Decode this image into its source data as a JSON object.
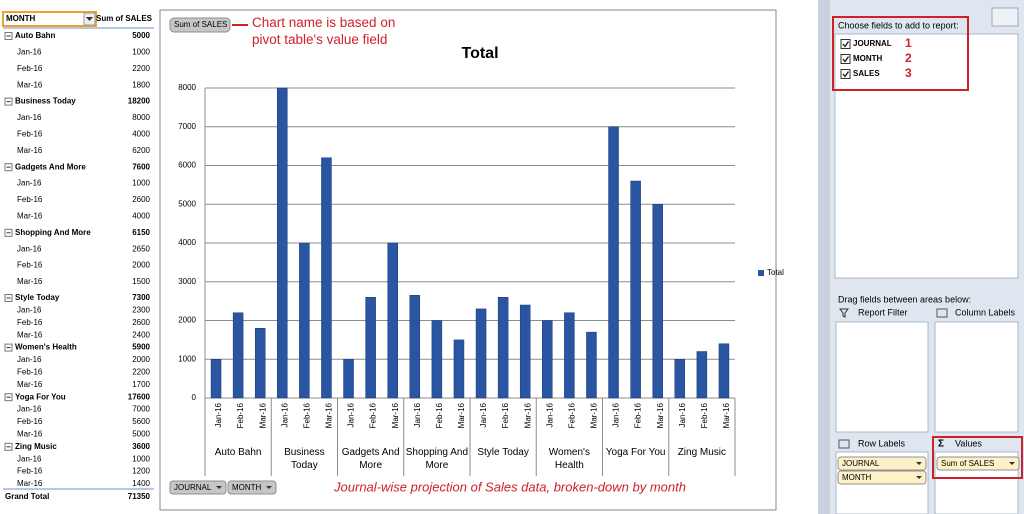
{
  "pivot_table": {
    "headers": [
      "MONTH",
      "Sum of SALES"
    ],
    "groups": [
      {
        "name": "Auto Bahn",
        "total": 5000,
        "rows": [
          [
            "Jan-16",
            1000
          ],
          [
            "Feb-16",
            2200
          ],
          [
            "Mar-16",
            1800
          ]
        ]
      },
      {
        "name": "Business Today",
        "total": 18200,
        "rows": [
          [
            "Jan-16",
            8000
          ],
          [
            "Feb-16",
            4000
          ],
          [
            "Mar-16",
            6200
          ]
        ]
      },
      {
        "name": "Gadgets And More",
        "total": 7600,
        "rows": [
          [
            "Jan-16",
            1000
          ],
          [
            "Feb-16",
            2600
          ],
          [
            "Mar-16",
            4000
          ]
        ]
      },
      {
        "name": "Shopping And More",
        "total": 6150,
        "rows": [
          [
            "Jan-16",
            2650
          ],
          [
            "Feb-16",
            2000
          ],
          [
            "Mar-16",
            1500
          ]
        ]
      },
      {
        "name": "Style Today",
        "total": 7300,
        "rows": [
          [
            "Jan-16",
            2300
          ],
          [
            "Feb-16",
            2600
          ],
          [
            "Mar-16",
            2400
          ]
        ]
      },
      {
        "name": "Women's Health",
        "total": 5900,
        "rows": [
          [
            "Jan-16",
            2000
          ],
          [
            "Feb-16",
            2200
          ],
          [
            "Mar-16",
            1700
          ]
        ]
      },
      {
        "name": "Yoga For You",
        "total": 17600,
        "rows": [
          [
            "Jan-16",
            7000
          ],
          [
            "Feb-16",
            5600
          ],
          [
            "Mar-16",
            5000
          ]
        ]
      },
      {
        "name": "Zing Music",
        "total": 3600,
        "rows": [
          [
            "Jan-16",
            1000
          ],
          [
            "Feb-16",
            1200
          ],
          [
            "Mar-16",
            1400
          ]
        ]
      }
    ],
    "grand_total": {
      "label": "Grand Total",
      "value": 71350
    }
  },
  "chart_data": {
    "type": "bar",
    "title": "Total",
    "value_field_button": "Sum of SALES",
    "axis_field_buttons": [
      "JOURNAL",
      "MONTH"
    ],
    "categories": [
      "Jan-16",
      "Feb-16",
      "Mar-16",
      "Jan-16",
      "Feb-16",
      "Mar-16",
      "Jan-16",
      "Feb-16",
      "Mar-16",
      "Jan-16",
      "Feb-16",
      "Mar-16",
      "Jan-16",
      "Feb-16",
      "Mar-16",
      "Jan-16",
      "Feb-16",
      "Mar-16",
      "Jan-16",
      "Feb-16",
      "Mar-16",
      "Jan-16",
      "Feb-16",
      "Mar-16"
    ],
    "groups": [
      "Auto Bahn",
      "Business Today",
      "Gadgets And More",
      "Shopping And More",
      "Style Today",
      "Women's Health",
      "Yoga For You",
      "Zing Music"
    ],
    "series": [
      {
        "name": "Total",
        "color": "#2a55a2",
        "values": [
          1000,
          2200,
          1800,
          8000,
          4000,
          6200,
          1000,
          2600,
          4000,
          2650,
          2000,
          1500,
          2300,
          2600,
          2400,
          2000,
          2200,
          1700,
          7000,
          5600,
          5000,
          1000,
          1200,
          1400
        ]
      }
    ],
    "ylim": [
      0,
      8000
    ],
    "yticks": [
      0,
      1000,
      2000,
      3000,
      4000,
      5000,
      6000,
      7000,
      8000
    ],
    "grid": true,
    "legend": "right",
    "annotations": [
      "Chart name is based on pivot table's value field",
      "Journal-wise projection of Sales data, broken-down by month"
    ]
  },
  "field_list": {
    "choose_label": "Choose fields to add to report:",
    "fields": [
      {
        "name": "JOURNAL",
        "number": 1
      },
      {
        "name": "MONTH",
        "number": 2
      },
      {
        "name": "SALES",
        "number": 3
      }
    ],
    "drag_label": "Drag fields between areas below:",
    "report_filter": "Report Filter",
    "column_labels": "Column Labels",
    "row_labels": {
      "title": "Row Labels",
      "items": [
        "JOURNAL",
        "MONTH"
      ]
    },
    "values": {
      "title": "Values",
      "items": [
        "Sum of SALES"
      ]
    }
  }
}
